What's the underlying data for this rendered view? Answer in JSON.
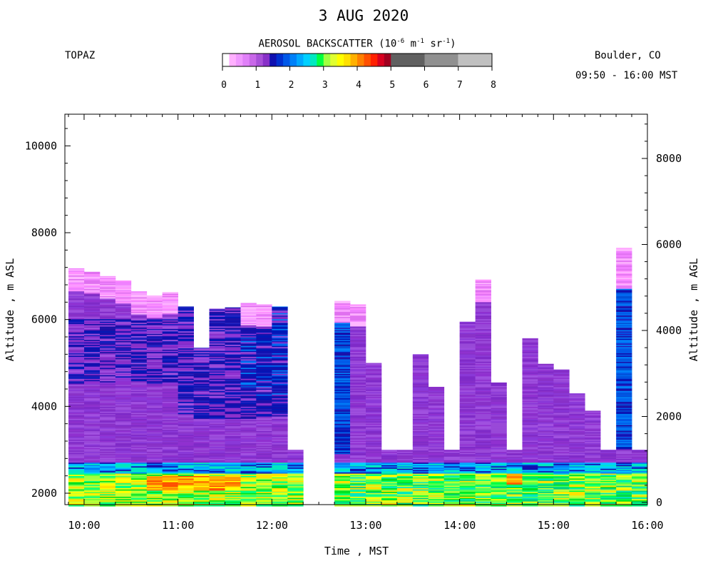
{
  "chart_data": {
    "type": "heatmap",
    "title": "3 AUG 2020",
    "instrument": "TOPAZ",
    "location": "Boulder, CO",
    "time_span": "09:50 - 16:00 MST",
    "colorbar": {
      "title_prefix": "AEROSOL BACKSCATTER (10",
      "title_exp1": "-6",
      "title_mid": " m",
      "title_exp2": "-1",
      "title_mid2": " sr",
      "title_exp3": "-1",
      "title_suffix": ")",
      "min": 0,
      "max": 8,
      "ticks": [
        0,
        1,
        2,
        3,
        4,
        5,
        6,
        7,
        8
      ],
      "colors": [
        "#ffffff",
        "#ffb0ff",
        "#f098ff",
        "#e080f8",
        "#c868e8",
        "#a850d8",
        "#8830c8",
        "#1010b0",
        "#0030d0",
        "#0058e8",
        "#0080f8",
        "#00a8ff",
        "#00d0ff",
        "#00e8c0",
        "#00ff40",
        "#a0ff40",
        "#e0ff30",
        "#ffff00",
        "#ffe000",
        "#ffb000",
        "#ff8000",
        "#ff5000",
        "#ff2000",
        "#d80020",
        "#a00020",
        "#606060",
        "#6a6a6a",
        "#909090",
        "#c0c0c0"
      ]
    },
    "xlabel": "Time , MST",
    "ylabel_left": "Altitude , m ASL",
    "ylabel_right": "Altitude , m AGL",
    "x_ticks": [
      "10:00",
      "11:00",
      "12:00",
      "13:00",
      "14:00",
      "15:00",
      "16:00"
    ],
    "xlim_hours": [
      9.833,
      16.0
    ],
    "ylim_left_m": [
      1700,
      10700
    ],
    "y_ticks_left": [
      2000,
      4000,
      6000,
      8000,
      10000
    ],
    "y_ticks_right": [
      0,
      2000,
      4000,
      6000,
      8000
    ],
    "profiles": [
      {
        "t": 9.833,
        "top": 7180,
        "col": 2
      },
      {
        "t": 10.0,
        "top": 7100,
        "col": 2
      },
      {
        "t": 10.167,
        "top": 7000,
        "col": 2
      },
      {
        "t": 10.333,
        "top": 6900,
        "col": 2
      },
      {
        "t": 10.5,
        "top": 6650,
        "col": 2
      },
      {
        "t": 10.667,
        "top": 6550,
        "col": 2
      },
      {
        "t": 10.833,
        "top": 6630,
        "col": 2
      },
      {
        "t": 11.0,
        "top": 6300,
        "col": 1
      },
      {
        "t": 11.167,
        "top": 5350,
        "col": 1
      },
      {
        "t": 11.333,
        "top": 6250,
        "col": 1
      },
      {
        "t": 11.5,
        "top": 6280,
        "col": 1
      },
      {
        "t": 11.667,
        "top": 6380,
        "col": 3
      },
      {
        "t": 11.833,
        "top": 6350,
        "col": 3
      },
      {
        "t": 12.0,
        "top": 6300,
        "col": 3
      },
      {
        "t": 12.167,
        "top": 3000,
        "col": 3
      },
      {
        "t": 12.667,
        "top": 6430,
        "col": 4
      },
      {
        "t": 12.833,
        "top": 6350,
        "col": 4
      },
      {
        "t": 13.0,
        "top": 5000,
        "col": 4
      },
      {
        "t": 13.167,
        "top": 3000,
        "col": 4
      },
      {
        "t": 13.333,
        "top": 3000,
        "col": 4
      },
      {
        "t": 13.5,
        "top": 5200,
        "col": 4
      },
      {
        "t": 13.667,
        "top": 4450,
        "col": 4
      },
      {
        "t": 13.833,
        "top": 3000,
        "col": 4
      },
      {
        "t": 14.0,
        "top": 5950,
        "col": 4
      },
      {
        "t": 14.167,
        "top": 6920,
        "col": 4
      },
      {
        "t": 14.333,
        "top": 4550,
        "col": 4
      },
      {
        "t": 14.5,
        "top": 3000,
        "col": 4
      },
      {
        "t": 14.667,
        "top": 5570,
        "col": 4
      },
      {
        "t": 14.833,
        "top": 4980,
        "col": 4
      },
      {
        "t": 15.0,
        "top": 4850,
        "col": 4
      },
      {
        "t": 15.167,
        "top": 4300,
        "col": 4
      },
      {
        "t": 15.333,
        "top": 3900,
        "col": 4
      },
      {
        "t": 15.5,
        "top": 3000,
        "col": 4
      },
      {
        "t": 15.667,
        "top": 7650,
        "col": 4
      },
      {
        "t": 15.833,
        "top": 3000,
        "col": 4
      }
    ]
  }
}
